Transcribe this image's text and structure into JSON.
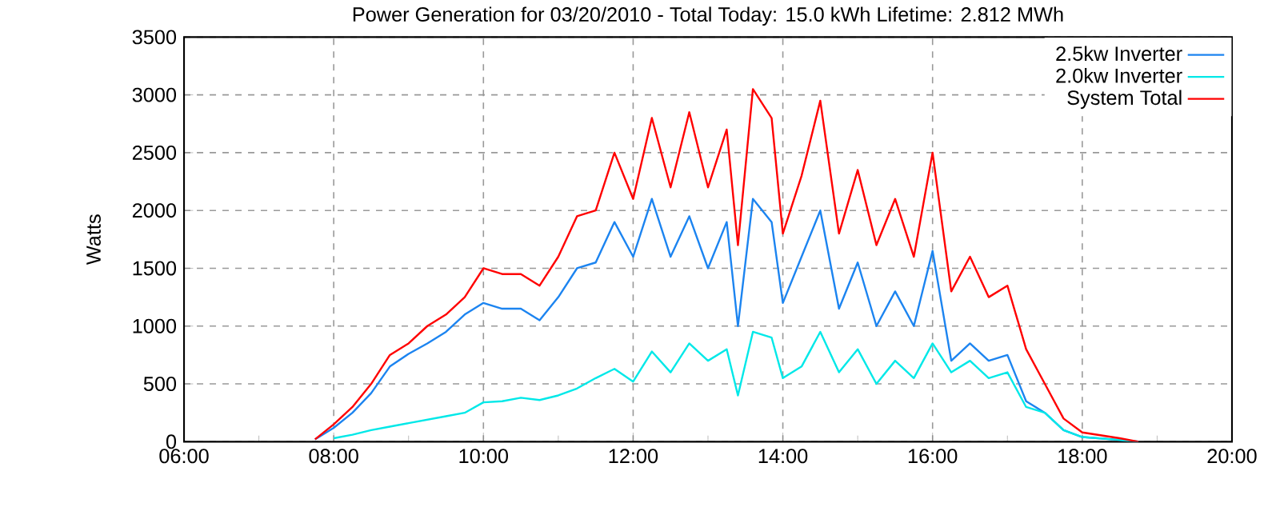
{
  "chart_data": {
    "type": "line",
    "title": "Power Generation for 03/20/2010 - Total Today: 15.0 kWh   Lifetime: 2.812 MWh",
    "ylabel": "Watts",
    "x": [
      7.75,
      8.0,
      8.25,
      8.5,
      8.75,
      9.0,
      9.25,
      9.5,
      9.75,
      10.0,
      10.25,
      10.5,
      10.75,
      11.0,
      11.25,
      11.5,
      11.75,
      12.0,
      12.25,
      12.5,
      12.75,
      13.0,
      13.25,
      13.4,
      13.6,
      13.85,
      14.0,
      14.25,
      14.5,
      14.75,
      15.0,
      15.25,
      15.5,
      15.75,
      16.0,
      16.25,
      16.5,
      16.75,
      17.0,
      17.25,
      17.5,
      17.75,
      18.0,
      18.5,
      18.75
    ],
    "series": [
      {
        "name": "2.5kw Inverter",
        "color": "#1c84f0",
        "values": [
          20,
          120,
          250,
          420,
          650,
          760,
          850,
          950,
          1100,
          1200,
          1150,
          1150,
          1050,
          1250,
          1500,
          1550,
          1900,
          1600,
          2100,
          1600,
          1950,
          1500,
          1900,
          1000,
          2100,
          1900,
          1200,
          1600,
          2000,
          1150,
          1550,
          1000,
          1300,
          1000,
          1650,
          700,
          850,
          700,
          750,
          350,
          250,
          100,
          40,
          15,
          0
        ]
      },
      {
        "name": "2.0kw Inverter",
        "color": "#00e8e8",
        "values": [
          null,
          30,
          60,
          100,
          130,
          160,
          190,
          220,
          250,
          340,
          350,
          380,
          360,
          400,
          460,
          550,
          630,
          520,
          780,
          600,
          850,
          700,
          800,
          400,
          950,
          900,
          550,
          650,
          950,
          600,
          800,
          500,
          700,
          550,
          850,
          600,
          700,
          550,
          600,
          300,
          250,
          100,
          40,
          15,
          0
        ]
      },
      {
        "name": "System Total",
        "color": "#ff0000",
        "values": [
          20,
          150,
          300,
          500,
          750,
          850,
          1000,
          1100,
          1250,
          1500,
          1450,
          1450,
          1350,
          1600,
          1950,
          2000,
          2500,
          2100,
          2800,
          2200,
          2850,
          2200,
          2700,
          1700,
          3050,
          2800,
          1800,
          2300,
          2950,
          1800,
          2350,
          1700,
          2100,
          1600,
          2500,
          1300,
          1600,
          1250,
          1350,
          800,
          500,
          200,
          80,
          30,
          0
        ]
      }
    ],
    "xlim": [
      6,
      20
    ],
    "xticks": [
      {
        "value": 6,
        "label": "06:00"
      },
      {
        "value": 8,
        "label": "08:00"
      },
      {
        "value": 10,
        "label": "10:00"
      },
      {
        "value": 12,
        "label": "12:00"
      },
      {
        "value": 14,
        "label": "14:00"
      },
      {
        "value": 16,
        "label": "16:00"
      },
      {
        "value": 18,
        "label": "18:00"
      },
      {
        "value": 20,
        "label": "20:00"
      }
    ],
    "ylim": [
      0,
      3500
    ],
    "yticks": [
      0,
      500,
      1000,
      1500,
      2000,
      2500,
      3000,
      3500
    ],
    "grid": true,
    "legend": "top right",
    "line_style": "solid",
    "marker": "none"
  }
}
